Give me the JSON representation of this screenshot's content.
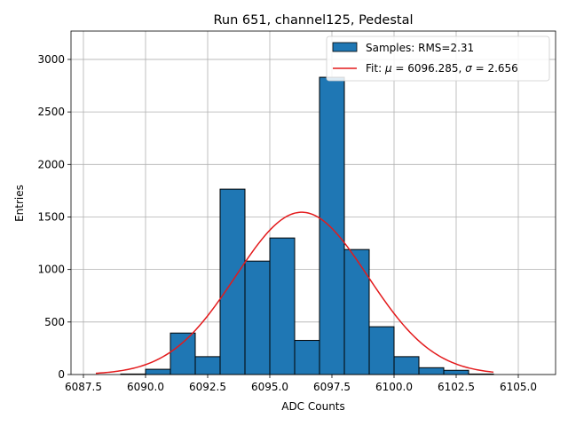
{
  "chart_data": {
    "type": "bar",
    "title": "Run 651, channel125, Pedestal",
    "xlabel": "ADC Counts",
    "ylabel": "Entries",
    "xlim": [
      6087.0,
      6106.5
    ],
    "ylim": [
      0,
      3270
    ],
    "xticks": [
      6087.5,
      6090.0,
      6092.5,
      6095.0,
      6097.5,
      6100.0,
      6102.5,
      6105.0
    ],
    "xtick_labels": [
      "6087.5",
      "6090.0",
      "6092.5",
      "6095.0",
      "6097.5",
      "6100.0",
      "6102.5",
      "6105.0"
    ],
    "yticks": [
      0,
      500,
      1000,
      1500,
      2000,
      2500,
      3000
    ],
    "ytick_labels": [
      "0",
      "500",
      "1000",
      "1500",
      "2000",
      "2500",
      "3000"
    ],
    "grid": true,
    "legend_position": "top-right",
    "bins": [
      {
        "x0": 6089,
        "x1": 6090,
        "value": 5
      },
      {
        "x0": 6090,
        "x1": 6091,
        "value": 50
      },
      {
        "x0": 6091,
        "x1": 6092,
        "value": 395
      },
      {
        "x0": 6092,
        "x1": 6093,
        "value": 170
      },
      {
        "x0": 6093,
        "x1": 6094,
        "value": 1765
      },
      {
        "x0": 6094,
        "x1": 6095,
        "value": 1080
      },
      {
        "x0": 6095,
        "x1": 6096,
        "value": 1300
      },
      {
        "x0": 6096,
        "x1": 6097,
        "value": 325
      },
      {
        "x0": 6097,
        "x1": 6098,
        "value": 2830
      },
      {
        "x0": 6098,
        "x1": 6099,
        "value": 1190
      },
      {
        "x0": 6099,
        "x1": 6100,
        "value": 455
      },
      {
        "x0": 6100,
        "x1": 6101,
        "value": 170
      },
      {
        "x0": 6101,
        "x1": 6102,
        "value": 65
      },
      {
        "x0": 6102,
        "x1": 6103,
        "value": 40
      },
      {
        "x0": 6103,
        "x1": 6104,
        "value": 5
      }
    ],
    "fit": {
      "mu": 6096.285,
      "sigma": 2.656,
      "amplitude": 1545,
      "x_range": [
        6088.0,
        6104.0
      ]
    },
    "series": [
      {
        "name": "Samples: RMS=2.31",
        "kind": "histogram",
        "color": "#1f77b4"
      },
      {
        "name_prefix": "Fit: ",
        "mu_symbol": "μ",
        "mu_text": " = 6096.285, ",
        "sigma_symbol": "σ",
        "sigma_text": " = 2.656",
        "kind": "line",
        "color": "#e31a1c"
      }
    ]
  }
}
